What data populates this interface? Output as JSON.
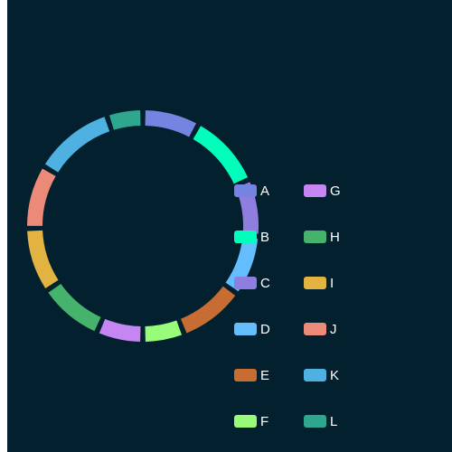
{
  "chart_data": {
    "type": "pie",
    "variant": "donut",
    "background": "#03202e",
    "categories": [
      "A",
      "B",
      "C",
      "D",
      "E",
      "F",
      "G",
      "H",
      "I",
      "J",
      "K",
      "L"
    ],
    "values": [
      8.1,
      10.6,
      8.1,
      8.6,
      9.4,
      5.9,
      6.6,
      9.2,
      9.2,
      9.1,
      11.5,
      5.1
    ],
    "colors": [
      "#7484e0",
      "#00ffbb",
      "#8e7ee0",
      "#64bdff",
      "#c76d33",
      "#98fc7a",
      "#c586f2",
      "#46b36c",
      "#e3b341",
      "#ec8a7a",
      "#4eb1e2",
      "#2fa68e"
    ],
    "legend": {
      "placement": "right",
      "columns": [
        [
          "A",
          "B",
          "C",
          "D",
          "E",
          "F"
        ],
        [
          "G",
          "H",
          "I",
          "J",
          "K",
          "L"
        ]
      ]
    }
  }
}
